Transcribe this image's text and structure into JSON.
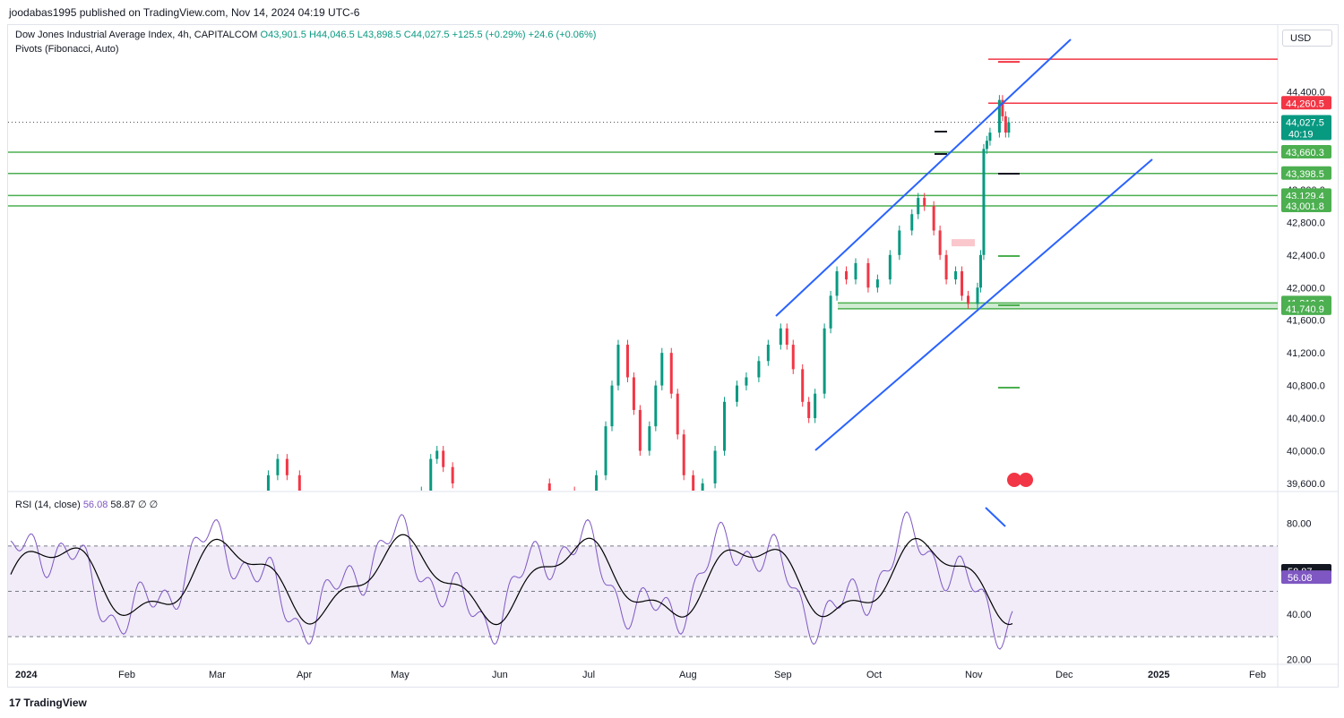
{
  "header": {
    "published": "joodabas1995 published on TradingView.com, Nov 14, 2024 04:19 UTC-6"
  },
  "legend": {
    "symbol": "Dow Jones Industrial Average Index, 4h, CAPITALCOM",
    "open": "O43,901.5",
    "high": "H44,046.5",
    "low": "L43,898.5",
    "close": "C44,027.5",
    "change": "+125.5 (+0.29%)",
    "volume_change": "+24.6 (+0.06%)",
    "indicator": "Pivots (Fibonacci, Auto)"
  },
  "rsi_legend": {
    "name": "RSI (14, close)",
    "value1": "56.08",
    "value2": "58.87",
    "extra1": "∅",
    "extra2": "∅"
  },
  "currency": "USD",
  "footer": {
    "brand": "TradingView",
    "logo": "17"
  },
  "colors": {
    "up": "#089981",
    "down": "#f23645",
    "channel": "#2962ff",
    "support": "#4caf50",
    "resistance": "#f23645",
    "rsi": "#7e57c2",
    "rsi_ma": "#000000",
    "rsi_band": "#ede7f6"
  },
  "chart_data": [
    {
      "type": "candlestick",
      "title": "Dow Jones Industrial Average Index, 4h, CAPITALCOM",
      "ylim": [
        39600,
        44800
      ],
      "x_labels": [
        "2024",
        "Feb",
        "Mar",
        "Apr",
        "May",
        "Jun",
        "Jul",
        "Aug",
        "Sep",
        "Oct",
        "Nov",
        "Dec",
        "2025",
        "Feb"
      ],
      "y_ticks": [
        39600,
        40000,
        40400,
        40800,
        41200,
        41600,
        42000,
        42400,
        42800,
        43200,
        44400
      ],
      "y_tick_labels": [
        "39,600.0",
        "40,000.0",
        "40,400.0",
        "40,800.0",
        "41,200.0",
        "41,600.0",
        "42,000.0",
        "42,400.0",
        "42,800.0",
        "43,200.0",
        "44,400.0"
      ],
      "series": [
        {
          "dates": [
            "2024-03-20",
            "2024-03-22",
            "2024-03-25",
            "2024-03-28",
            "2024-04-01",
            "2024-05-10",
            "2024-05-13",
            "2024-05-15",
            "2024-05-17",
            "2024-05-20",
            "2024-06-20",
            "2024-06-28",
            "2024-07-05",
            "2024-07-08",
            "2024-07-10",
            "2024-07-12",
            "2024-07-15",
            "2024-07-17",
            "2024-07-19",
            "2024-07-22",
            "2024-07-24",
            "2024-07-26",
            "2024-07-29",
            "2024-07-31",
            "2024-08-02",
            "2024-08-05",
            "2024-08-08",
            "2024-08-12",
            "2024-08-15",
            "2024-08-19",
            "2024-08-22",
            "2024-08-26",
            "2024-08-29",
            "2024-09-02",
            "2024-09-04",
            "2024-09-06",
            "2024-09-09",
            "2024-09-11",
            "2024-09-13",
            "2024-09-16",
            "2024-09-18",
            "2024-09-20",
            "2024-09-23",
            "2024-09-26",
            "2024-09-30",
            "2024-10-03",
            "2024-10-07",
            "2024-10-10",
            "2024-10-14",
            "2024-10-16",
            "2024-10-18",
            "2024-10-21",
            "2024-10-23",
            "2024-10-25",
            "2024-10-28",
            "2024-10-30",
            "2024-11-01",
            "2024-11-04",
            "2024-11-05",
            "2024-11-06",
            "2024-11-07",
            "2024-11-08",
            "2024-11-11",
            "2024-11-12",
            "2024-11-13",
            "2024-11-14"
          ],
          "close": [
            39400,
            39700,
            39900,
            39700,
            39500,
            39500,
            39900,
            40000,
            39800,
            39600,
            39500,
            39400,
            39700,
            40300,
            40800,
            41300,
            40900,
            40500,
            40000,
            40300,
            40800,
            41200,
            40700,
            40200,
            39700,
            39200,
            39600,
            40000,
            40600,
            40800,
            40900,
            41100,
            41300,
            41500,
            41300,
            41000,
            40600,
            40400,
            40700,
            41500,
            41900,
            42200,
            42100,
            42300,
            42000,
            42100,
            42400,
            42700,
            42900,
            43100,
            43000,
            42700,
            42400,
            42100,
            42200,
            41900,
            41800,
            42000,
            42400,
            43700,
            43800,
            43900,
            44300,
            44100,
            43900,
            44027
          ]
        }
      ],
      "price_levels": [
        {
          "label": "44,260.5",
          "value": 44260.5,
          "kind": "resistance"
        },
        {
          "label": "44,027.5",
          "value": 44027.5,
          "kind": "current",
          "countdown": "40:19"
        },
        {
          "label": "43,660.3",
          "value": 43660.3,
          "kind": "support"
        },
        {
          "label": "43,398.5",
          "value": 43398.5,
          "kind": "support"
        },
        {
          "label": "43,129.4",
          "value": 43129.4,
          "kind": "support"
        },
        {
          "label": "43,001.8",
          "value": 43001.8,
          "kind": "support"
        },
        {
          "label": "41,812.2",
          "value": 41812.2,
          "kind": "support"
        },
        {
          "label": "41,740.9",
          "value": 41740.9,
          "kind": "support"
        }
      ],
      "top_red_line": 44800
    },
    {
      "type": "line",
      "title": "RSI (14, close)",
      "ylim": [
        17,
        90
      ],
      "y_ticks": [
        20,
        40,
        60,
        80
      ],
      "y_tick_labels": [
        "20.00",
        "40.00",
        "60.00",
        "80.00"
      ],
      "bands": [
        30,
        50,
        70
      ],
      "series": [
        {
          "name": "RSI",
          "last": 56.08
        },
        {
          "name": "RSI-based MA",
          "last": 58.87
        }
      ]
    }
  ]
}
